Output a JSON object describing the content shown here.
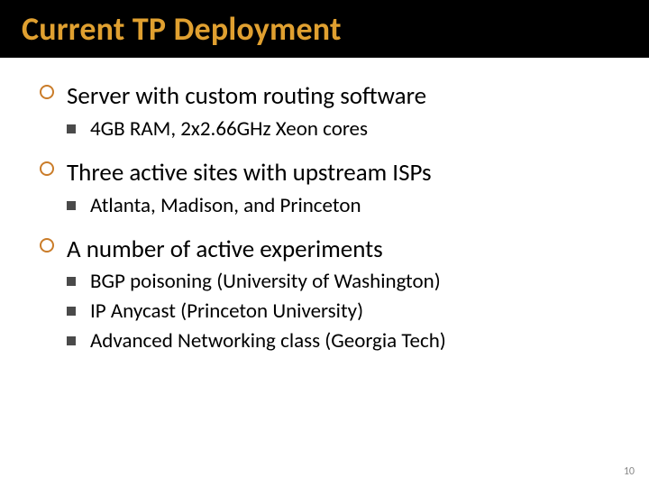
{
  "title": {
    "text": "Current TP Deployment",
    "color": "#e0a030",
    "bg": "#000000",
    "fontsize": 36
  },
  "bullets": [
    {
      "text": "Server with custom routing software",
      "subs": [
        "4GB RAM, 2x2.66GHz Xeon cores"
      ]
    },
    {
      "text": "Three active sites with upstream ISPs",
      "subs": [
        "Atlanta, Madison, and Princeton"
      ]
    },
    {
      "text": "A number of active experiments",
      "subs": [
        "BGP poisoning (University of Washington)",
        "IP Anycast  (Princeton University)",
        "Advanced Networking class (Georgia Tech)"
      ]
    }
  ],
  "style": {
    "top_bullet_color": "#ca7c29",
    "sub_bullet_color": "#4a4a4a",
    "body_fontsize": 27,
    "sub_fontsize": 23,
    "background": "#ffffff"
  },
  "page_number": "10"
}
